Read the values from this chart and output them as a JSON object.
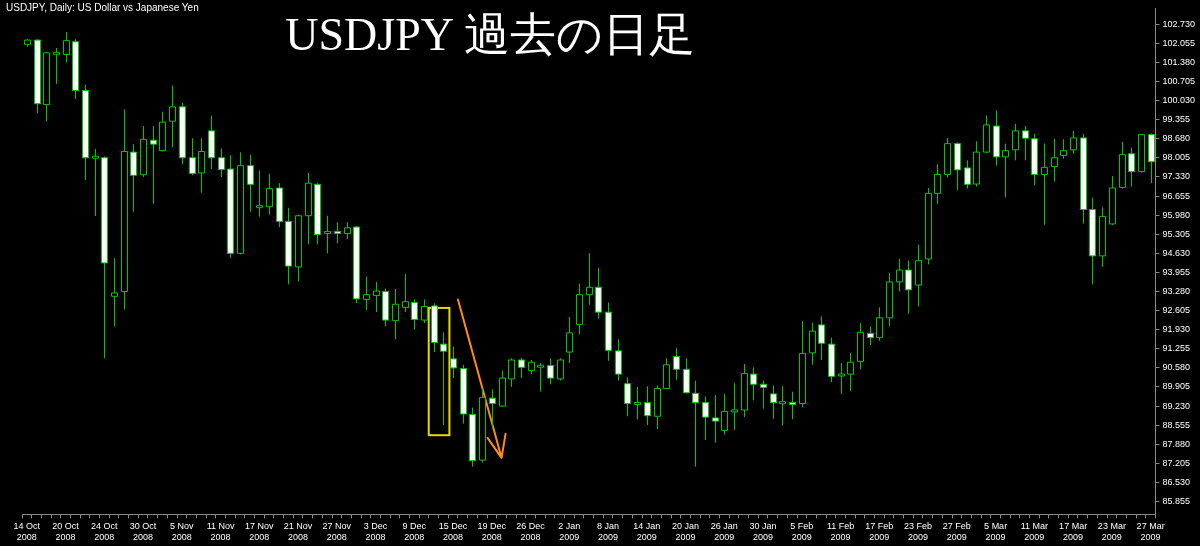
{
  "chart_data": {
    "type": "candlestick",
    "title": "USDJPY 過去の日足",
    "subtitle": "USDJPY, Daily: US Dollar vs Japanese Yen",
    "color": "#00c800",
    "grid": false,
    "legend": false,
    "categories": [
      "14 Oct 2008",
      null,
      null,
      null,
      "20 Oct 2008",
      null,
      null,
      null,
      "24 Oct 2008",
      null,
      null,
      null,
      "30 Oct 2008",
      null,
      null,
      null,
      "5 Nov 2008",
      null,
      null,
      null,
      "11 Nov 2008",
      null,
      null,
      null,
      "17 Nov 2008",
      null,
      null,
      null,
      "21 Nov 2008",
      null,
      null,
      null,
      "27 Nov 2008",
      null,
      null,
      null,
      "3 Dec 2008",
      null,
      null,
      null,
      "9 Dec 2008",
      null,
      null,
      null,
      "15 Dec 2008",
      null,
      null,
      null,
      "19 Dec 2008",
      null,
      null,
      null,
      "26 Dec 2008",
      null,
      null,
      null,
      "2 Jan 2009",
      null,
      null,
      null,
      "8 Jan 2009",
      null,
      null,
      null,
      "14 Jan 2009",
      null,
      null,
      null,
      "20 Jan 2009",
      null,
      null,
      null,
      "26 Jan 2009",
      null,
      null,
      null,
      "30 Jan 2009",
      null,
      null,
      null,
      "5 Feb 2009",
      null,
      null,
      null,
      "11 Feb 2009",
      null,
      null,
      null,
      "17 Feb 2009",
      null,
      null,
      null,
      "23 Feb 2009",
      null,
      null,
      null,
      "27 Feb 2009",
      null,
      null,
      null,
      "5 Mar 2009",
      null,
      null,
      null,
      "11 Mar 2009",
      null,
      null,
      null,
      "17 Mar 2009",
      null,
      null,
      null,
      "23 Mar 2009",
      null,
      null,
      null,
      "27 Mar 2009"
    ],
    "ohlc": [
      [
        102.02,
        102.21,
        101.94,
        102.17
      ],
      [
        102.17,
        102.2,
        99.58,
        99.92
      ],
      [
        99.89,
        101.75,
        99.3,
        101.72
      ],
      [
        101.7,
        101.89,
        100.62,
        101.7
      ],
      [
        101.66,
        102.45,
        101.38,
        102.15
      ],
      [
        102.11,
        102.2,
        100.09,
        100.39
      ],
      [
        100.39,
        100.59,
        97.22,
        98.01
      ],
      [
        98.03,
        98.32,
        95.95,
        98.03
      ],
      [
        98.01,
        98.06,
        90.92,
        94.29
      ],
      [
        93.11,
        94.46,
        92.05,
        93.23
      ],
      [
        93.28,
        99.72,
        92.64,
        98.23
      ],
      [
        98.21,
        98.49,
        96.1,
        97.39
      ],
      [
        97.41,
        99.13,
        97.33,
        98.66
      ],
      [
        98.63,
        99.13,
        96.38,
        98.49
      ],
      [
        98.26,
        99.64,
        98.23,
        99.27
      ],
      [
        99.3,
        100.56,
        98.38,
        99.81
      ],
      [
        99.81,
        99.95,
        97.78,
        98.01
      ],
      [
        98.01,
        98.7,
        97.39,
        97.45
      ],
      [
        97.47,
        98.7,
        96.77,
        98.23
      ],
      [
        98.96,
        99.5,
        97.61,
        98.01
      ],
      [
        98.01,
        98.34,
        97.33,
        97.59
      ],
      [
        97.61,
        98.1,
        94.46,
        94.63
      ],
      [
        94.63,
        98.2,
        94.59,
        97.73
      ],
      [
        97.73,
        98.12,
        96.1,
        97.07
      ],
      [
        96.28,
        97.56,
        95.93,
        96.28
      ],
      [
        96.28,
        97.45,
        96.0,
        96.92
      ],
      [
        96.94,
        97.11,
        95.56,
        95.76
      ],
      [
        95.76,
        96.24,
        93.53,
        94.18
      ],
      [
        94.15,
        96.0,
        93.64,
        95.96
      ],
      [
        95.96,
        97.47,
        94.95,
        97.11
      ],
      [
        97.07,
        97.12,
        94.95,
        95.29
      ],
      [
        95.33,
        95.96,
        94.63,
        95.4
      ],
      [
        95.4,
        95.73,
        94.99,
        95.34
      ],
      [
        95.33,
        95.73,
        95.14,
        95.53
      ],
      [
        95.56,
        95.6,
        92.87,
        93.02
      ],
      [
        93.0,
        93.81,
        92.63,
        93.17
      ],
      [
        93.14,
        93.62,
        92.55,
        93.3
      ],
      [
        93.28,
        93.39,
        92.05,
        92.27
      ],
      [
        92.25,
        93.37,
        91.59,
        92.83
      ],
      [
        92.72,
        93.9,
        92.55,
        92.92
      ],
      [
        92.89,
        93.0,
        91.93,
        92.29
      ],
      [
        92.27,
        93.0,
        92.16,
        92.75
      ],
      [
        92.77,
        92.86,
        91.14,
        91.48
      ],
      [
        91.42,
        91.84,
        88.56,
        91.17
      ],
      [
        90.9,
        91.34,
        90.22,
        90.58
      ],
      [
        90.56,
        90.69,
        88.61,
        88.95
      ],
      [
        88.93,
        89.18,
        87.09,
        87.3
      ],
      [
        87.32,
        89.85,
        87.23,
        89.53
      ],
      [
        89.51,
        89.82,
        88.44,
        89.32
      ],
      [
        89.23,
        90.49,
        89.2,
        90.22
      ],
      [
        90.19,
        90.92,
        89.91,
        90.86
      ],
      [
        90.86,
        90.94,
        90.22,
        90.6
      ],
      [
        90.49,
        90.86,
        90.36,
        90.78
      ],
      [
        90.64,
        90.75,
        89.74,
        90.64
      ],
      [
        90.66,
        90.92,
        90.0,
        90.22
      ],
      [
        90.19,
        90.92,
        90.13,
        90.86
      ],
      [
        91.14,
        92.38,
        90.75,
        91.82
      ],
      [
        92.12,
        93.56,
        91.76,
        93.17
      ],
      [
        93.17,
        94.63,
        92.81,
        93.43
      ],
      [
        93.43,
        94.12,
        92.32,
        92.55
      ],
      [
        92.55,
        92.89,
        90.83,
        91.2
      ],
      [
        91.18,
        91.59,
        90.13,
        90.36
      ],
      [
        90.02,
        90.24,
        88.87,
        89.32
      ],
      [
        89.32,
        89.91,
        88.76,
        89.32
      ],
      [
        89.35,
        89.93,
        88.56,
        88.89
      ],
      [
        88.87,
        89.96,
        88.42,
        89.85
      ],
      [
        89.85,
        90.92,
        89.83,
        90.69
      ],
      [
        90.98,
        91.28,
        90.16,
        90.53
      ],
      [
        90.53,
        90.92,
        89.68,
        89.7
      ],
      [
        89.68,
        90.13,
        87.09,
        89.35
      ],
      [
        89.35,
        89.57,
        88.03,
        88.84
      ],
      [
        88.81,
        89.62,
        87.94,
        88.7
      ],
      [
        88.37,
        89.66,
        88.22,
        89.04
      ],
      [
        89.03,
        90.04,
        88.39,
        89.09
      ],
      [
        89.09,
        90.72,
        88.84,
        90.38
      ],
      [
        90.36,
        90.6,
        89.43,
        90.0
      ],
      [
        90.0,
        90.13,
        89.14,
        89.89
      ],
      [
        89.66,
        89.96,
        88.78,
        89.35
      ],
      [
        89.35,
        89.94,
        88.54,
        89.35
      ],
      [
        89.35,
        89.74,
        88.76,
        89.29
      ],
      [
        89.32,
        92.23,
        89.18,
        91.09
      ],
      [
        91.11,
        92.18,
        90.69,
        91.88
      ],
      [
        92.1,
        92.4,
        90.86,
        91.45
      ],
      [
        91.42,
        91.65,
        90.07,
        90.28
      ],
      [
        90.3,
        90.75,
        89.66,
        90.36
      ],
      [
        90.36,
        91.11,
        89.77,
        90.78
      ],
      [
        90.81,
        92.16,
        90.53,
        91.84
      ],
      [
        91.8,
        92.05,
        91.39,
        91.65
      ],
      [
        91.65,
        92.72,
        91.54,
        92.35
      ],
      [
        92.35,
        93.93,
        92.06,
        93.62
      ],
      [
        93.62,
        94.44,
        93.28,
        94.04
      ],
      [
        94.04,
        94.38,
        92.49,
        93.34
      ],
      [
        93.51,
        94.93,
        92.75,
        94.37
      ],
      [
        94.43,
        96.94,
        94.24,
        96.75
      ],
      [
        96.75,
        97.78,
        96.38,
        97.42
      ],
      [
        97.42,
        98.71,
        97.31,
        98.51
      ],
      [
        98.51,
        98.55,
        96.86,
        97.58
      ],
      [
        97.65,
        97.92,
        96.92,
        97.07
      ],
      [
        97.08,
        98.59,
        96.99,
        98.21
      ],
      [
        98.21,
        99.5,
        98.17,
        99.17
      ],
      [
        99.13,
        99.69,
        97.73,
        98.04
      ],
      [
        98.04,
        98.51,
        96.6,
        98.26
      ],
      [
        98.29,
        99.21,
        97.92,
        98.96
      ],
      [
        98.96,
        99.13,
        97.92,
        98.7
      ],
      [
        98.68,
        98.85,
        97.03,
        97.42
      ],
      [
        97.42,
        98.51,
        95.64,
        97.67
      ],
      [
        97.7,
        98.68,
        97.16,
        98.01
      ],
      [
        98.09,
        98.66,
        97.97,
        98.26
      ],
      [
        98.29,
        98.96,
        98.15,
        98.71
      ],
      [
        98.71,
        98.85,
        95.68,
        96.18
      ],
      [
        96.18,
        96.6,
        93.53,
        94.54
      ],
      [
        94.54,
        96.26,
        94.15,
        95.93
      ],
      [
        95.67,
        97.36,
        95.63,
        96.94
      ],
      [
        96.96,
        98.57,
        96.92,
        98.12
      ],
      [
        98.15,
        98.37,
        96.99,
        97.52
      ],
      [
        97.52,
        98.85,
        97.49,
        98.83
      ],
      [
        98.83,
        98.87,
        97.11,
        97.87
      ]
    ],
    "ylim": [
      85.4,
      103.29
    ],
    "yticks": [
      {
        "value": 102.73,
        "label": "102.730"
      },
      {
        "value": 102.055,
        "label": "102.055"
      },
      {
        "value": 101.38,
        "label": "101.380"
      },
      {
        "value": 100.705,
        "label": "100.705"
      },
      {
        "value": 100.03,
        "label": "100.030"
      },
      {
        "value": 99.355,
        "label": "99.355"
      },
      {
        "value": 98.68,
        "label": "98.680"
      },
      {
        "value": 98.005,
        "label": "98.005"
      },
      {
        "value": 97.33,
        "label": "97.330"
      },
      {
        "value": 96.655,
        "label": "96.655"
      },
      {
        "value": 95.98,
        "label": "95.980"
      },
      {
        "value": 95.305,
        "label": "95.305"
      },
      {
        "value": 94.63,
        "label": "94.630"
      },
      {
        "value": 93.955,
        "label": "93.955"
      },
      {
        "value": 93.28,
        "label": "93.280"
      },
      {
        "value": 92.605,
        "label": "92.605"
      },
      {
        "value": 91.93,
        "label": "91.930"
      },
      {
        "value": 91.255,
        "label": "91.255"
      },
      {
        "value": 90.58,
        "label": "90.580"
      },
      {
        "value": 89.905,
        "label": "89.905"
      },
      {
        "value": 89.23,
        "label": "89.230"
      },
      {
        "value": 88.555,
        "label": "88.555"
      },
      {
        "value": 87.88,
        "label": "87.880"
      },
      {
        "value": 87.205,
        "label": "87.205"
      },
      {
        "value": 86.53,
        "label": "86.530"
      },
      {
        "value": 85.855,
        "label": "85.855"
      }
    ]
  }
}
